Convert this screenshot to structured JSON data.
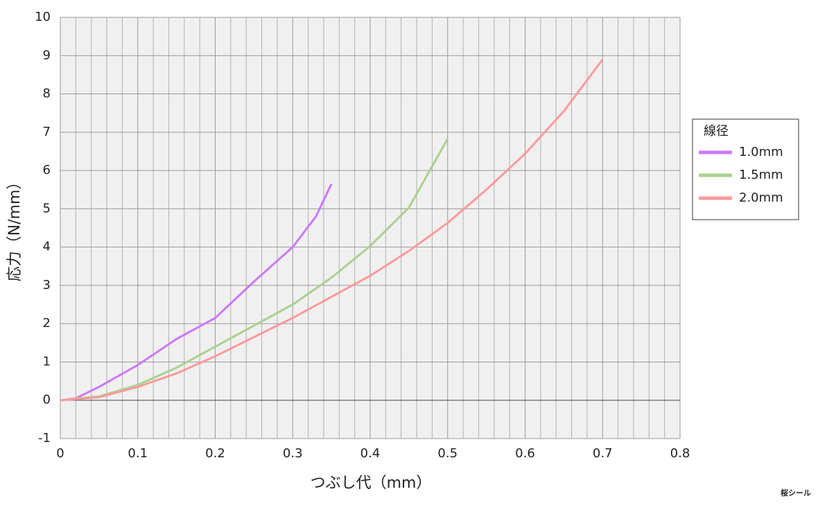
{
  "chart_data": {
    "type": "line",
    "xlabel": "つぶし代（mm）",
    "ylabel": "応力（N/mm）",
    "legend_title": "線径",
    "legend": "right",
    "xlim": [
      0,
      0.8
    ],
    "xticks": [
      0,
      0.1,
      0.2,
      0.3,
      0.4,
      0.5,
      0.6,
      0.7,
      0.8
    ],
    "xminorticks": [
      0.02,
      0.04,
      0.06,
      0.08,
      0.12,
      0.14,
      0.16,
      0.18,
      0.22,
      0.24,
      0.26,
      0.28,
      0.32,
      0.34,
      0.36,
      0.38,
      0.42,
      0.44,
      0.46,
      0.48,
      0.52,
      0.54,
      0.56,
      0.58,
      0.62,
      0.64,
      0.66,
      0.68,
      0.72,
      0.74,
      0.76,
      0.78
    ],
    "ylim": [
      -1,
      10
    ],
    "yticks": [
      -1,
      0,
      1,
      2,
      3,
      4,
      5,
      6,
      7,
      8,
      9,
      10
    ],
    "grid": true,
    "series": [
      {
        "name": "1.0mm",
        "color": "#cc77ff",
        "x": [
          0,
          0.02,
          0.05,
          0.1,
          0.15,
          0.2,
          0.25,
          0.3,
          0.33,
          0.35
        ],
        "values": [
          0,
          0.05,
          0.35,
          0.92,
          1.6,
          2.15,
          3.1,
          4.0,
          4.8,
          5.65
        ]
      },
      {
        "name": "1.5mm",
        "color": "#a9d18e",
        "x": [
          0,
          0.05,
          0.1,
          0.15,
          0.2,
          0.25,
          0.3,
          0.35,
          0.4,
          0.45,
          0.5
        ],
        "values": [
          0,
          0.1,
          0.4,
          0.85,
          1.4,
          1.95,
          2.5,
          3.2,
          4.03,
          5.03,
          6.83
        ]
      },
      {
        "name": "2.0mm",
        "color": "#ff9999",
        "x": [
          0,
          0.05,
          0.1,
          0.15,
          0.2,
          0.25,
          0.3,
          0.35,
          0.4,
          0.45,
          0.5,
          0.55,
          0.6,
          0.65,
          0.7
        ],
        "values": [
          0,
          0.08,
          0.35,
          0.7,
          1.15,
          1.65,
          2.15,
          2.7,
          3.25,
          3.9,
          4.63,
          5.5,
          6.44,
          7.55,
          8.9
        ]
      }
    ],
    "logo": "桜シール"
  }
}
